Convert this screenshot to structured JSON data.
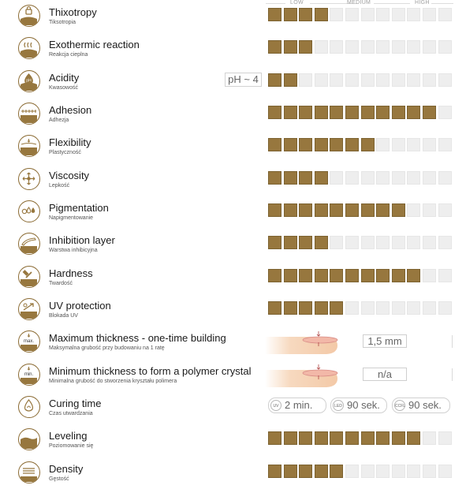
{
  "scale": {
    "low": "LOW",
    "medium": "MEDIUM",
    "high": "HIGH",
    "total_steps": 12,
    "accent": "#97773e"
  },
  "rows": [
    {
      "name": "Thixotropy",
      "sub": "Tiksotropia",
      "icon": "thixotropy-icon",
      "level": 4
    },
    {
      "name": "Exothermic reaction",
      "sub": "Reakcja cieplna",
      "icon": "heat-icon",
      "level": 3
    },
    {
      "name": "Acidity",
      "sub": "Kwasowość",
      "icon": "ph-icon",
      "level": 2,
      "badge": "pH ~ 4"
    },
    {
      "name": "Adhesion",
      "sub": "Adhezja",
      "icon": "adhesion-icon",
      "level": 11
    },
    {
      "name": "Flexibility",
      "sub": "Plastyczność",
      "icon": "flexibility-icon",
      "level": 7
    },
    {
      "name": "Viscosity",
      "sub": "Lepkość",
      "icon": "viscosity-icon",
      "level": 4
    },
    {
      "name": "Pigmentation",
      "sub": "Napigmentowanie",
      "icon": "pigmentation-icon",
      "level": 9
    },
    {
      "name": "Inhibition layer",
      "sub": "Warstwa inhibicyjna",
      "icon": "inhibition-icon",
      "level": 4
    },
    {
      "name": "Hardness",
      "sub": "Twardość",
      "icon": "hammer-icon",
      "level": 10
    },
    {
      "name": "UV protection",
      "sub": "Blokada UV",
      "icon": "uv-icon",
      "level": 5
    },
    {
      "name": "Maximum thickness - one-time building",
      "sub": "Maksymalna grubość przy budowaniu na 1 ratę",
      "icon": "max-thickness-icon",
      "value": "1,5 mm",
      "icon_label": "max."
    },
    {
      "name": "Minimum thickness to form a polymer crystal",
      "sub": "Minimalna grubość do stworzenia kryształu polimera",
      "icon": "min-thickness-icon",
      "value": "n/a",
      "icon_label": "min."
    },
    {
      "name": "Curing time",
      "sub": "Czas utwardzania",
      "icon": "curing-icon",
      "cures": [
        {
          "lamp": "UV",
          "time": "2 min."
        },
        {
          "lamp": "LED",
          "time": "90 sek."
        },
        {
          "lamp": "CCFL",
          "time": "90 sek."
        }
      ]
    },
    {
      "name": "Leveling",
      "sub": "Poziomowanie się",
      "icon": "leveling-icon",
      "level": 10
    },
    {
      "name": "Density",
      "sub": "Gęstość",
      "icon": "density-icon",
      "level": 5
    }
  ]
}
